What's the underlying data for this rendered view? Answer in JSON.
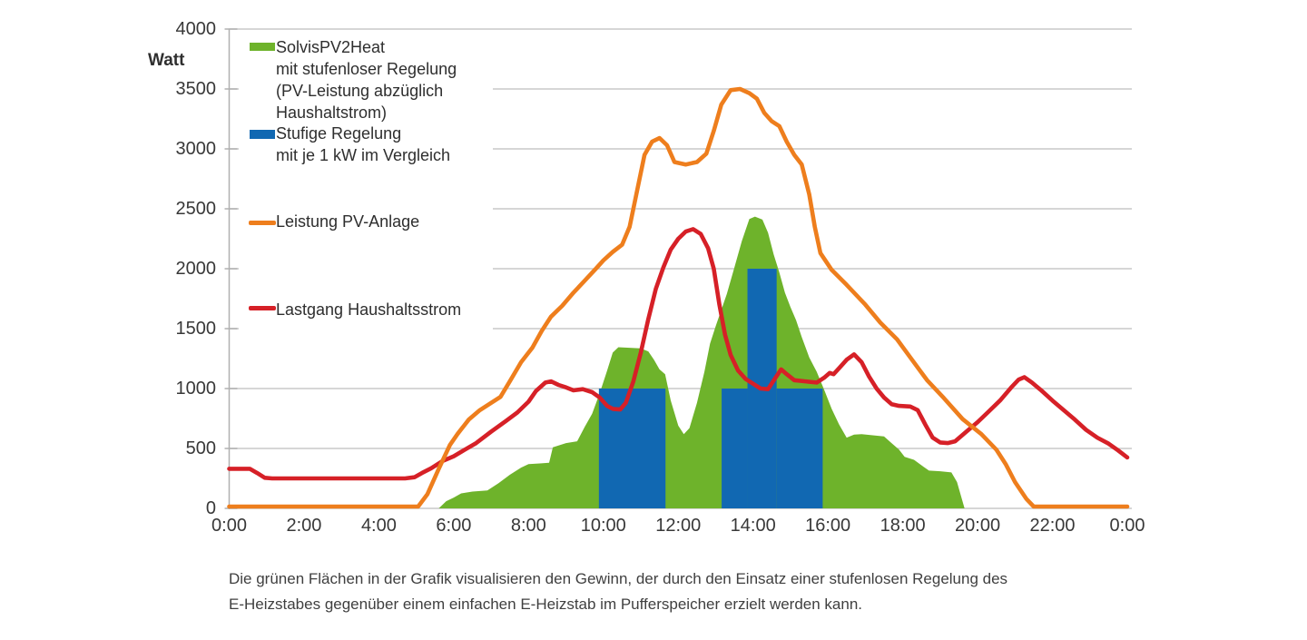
{
  "page": {
    "background": "#ffffff"
  },
  "caption": {
    "lines": [
      "Die grünen Flächen in der Grafik visualisieren den Gewinn, der durch den Einsatz einer stufenlosen Regelung des",
      "E-Heizstabes gegenüber einem einfachen E-Heizstab im Pufferspeicher erzielt werden kann."
    ]
  },
  "legend": {
    "entries": [
      {
        "swatch": "area_green",
        "label_lines": [
          "SolvisPV2Heat",
          "mit stufenloser Regelung",
          "(PV-Leistung abzüglich",
          "Haushaltstrom)"
        ]
      },
      {
        "swatch": "bar_blue",
        "label_lines": [
          "Stufige Regelung",
          "mit  je 1 kW im Vergleich"
        ]
      },
      {
        "swatch": "line_orange",
        "label_lines": [
          "Leistung PV-Anlage"
        ]
      },
      {
        "swatch": "line_red",
        "label_lines": [
          "Lastgang Haushaltsstrom"
        ]
      }
    ]
  },
  "chart_data": {
    "type": "combo (area + step-bars + lines)",
    "unit_label": "Watt",
    "xlim_hours": [
      0,
      24
    ],
    "ylim": [
      0,
      4000
    ],
    "grid": true,
    "colors": {
      "area_green": "#6eb32b",
      "bar_blue": "#1168b2",
      "line_orange": "#ee7e1d",
      "line_red": "#d62027",
      "grid": "#c9c9c9",
      "axis": "#b0b0b0",
      "text": "#383838"
    },
    "yticks": [
      {
        "value": 4000,
        "label": "4000"
      },
      {
        "value": 3500,
        "label": "3500"
      },
      {
        "value": 3000,
        "label": "3000"
      },
      {
        "value": 2500,
        "label": "2500"
      },
      {
        "value": 2000,
        "label": "2000"
      },
      {
        "value": 1500,
        "label": "1500"
      },
      {
        "value": 1000,
        "label": "1000"
      },
      {
        "value": 500,
        "label": "500"
      },
      {
        "value": 0,
        "label": "0"
      }
    ],
    "xticks": [
      {
        "hour": 0,
        "label": "0:00"
      },
      {
        "hour": 2,
        "label": "2:00"
      },
      {
        "hour": 4,
        "label": "4:00"
      },
      {
        "hour": 6,
        "label": "6:00"
      },
      {
        "hour": 8,
        "label": "8:00"
      },
      {
        "hour": 10,
        "label": "10:00"
      },
      {
        "hour": 12,
        "label": "12:00"
      },
      {
        "hour": 14,
        "label": "14:00"
      },
      {
        "hour": 16,
        "label": "16:00"
      },
      {
        "hour": 18,
        "label": "18:00"
      },
      {
        "hour": 20,
        "label": "20:00"
      },
      {
        "hour": 22,
        "label": "22:00"
      },
      {
        "hour": 24,
        "label": "0:00"
      }
    ],
    "series": [
      {
        "id": "solvis_area",
        "name": "SolvisPV2Heat mit stufenloser Regelung (PV-Leistung abzüglich Haushaltstrom)",
        "type": "area",
        "color_key": "area_green",
        "points": [
          [
            5.6,
            0
          ],
          [
            5.8,
            60
          ],
          [
            6.0,
            90
          ],
          [
            6.2,
            125
          ],
          [
            6.5,
            140
          ],
          [
            6.9,
            150
          ],
          [
            7.2,
            210
          ],
          [
            7.5,
            280
          ],
          [
            7.8,
            340
          ],
          [
            8.0,
            370
          ],
          [
            8.3,
            375
          ],
          [
            8.55,
            380
          ],
          [
            8.65,
            510
          ],
          [
            9.0,
            545
          ],
          [
            9.3,
            560
          ],
          [
            9.5,
            680
          ],
          [
            9.7,
            790
          ],
          [
            9.9,
            960
          ],
          [
            10.1,
            1150
          ],
          [
            10.25,
            1300
          ],
          [
            10.4,
            1345
          ],
          [
            10.7,
            1340
          ],
          [
            11.0,
            1335
          ],
          [
            11.2,
            1310
          ],
          [
            11.35,
            1240
          ],
          [
            11.5,
            1160
          ],
          [
            11.65,
            1120
          ],
          [
            11.8,
            900
          ],
          [
            12.0,
            690
          ],
          [
            12.15,
            620
          ],
          [
            12.3,
            670
          ],
          [
            12.5,
            880
          ],
          [
            12.7,
            1140
          ],
          [
            12.85,
            1375
          ],
          [
            13.0,
            1520
          ],
          [
            13.3,
            1790
          ],
          [
            13.5,
            2010
          ],
          [
            13.7,
            2230
          ],
          [
            13.9,
            2415
          ],
          [
            14.05,
            2435
          ],
          [
            14.25,
            2410
          ],
          [
            14.4,
            2300
          ],
          [
            14.55,
            2120
          ],
          [
            14.7,
            1970
          ],
          [
            14.85,
            1800
          ],
          [
            15.0,
            1680
          ],
          [
            15.15,
            1570
          ],
          [
            15.3,
            1430
          ],
          [
            15.5,
            1260
          ],
          [
            15.7,
            1140
          ],
          [
            15.9,
            990
          ],
          [
            16.1,
            830
          ],
          [
            16.3,
            700
          ],
          [
            16.5,
            590
          ],
          [
            16.7,
            615
          ],
          [
            16.9,
            620
          ],
          [
            17.2,
            610
          ],
          [
            17.5,
            600
          ],
          [
            17.7,
            545
          ],
          [
            17.9,
            490
          ],
          [
            18.05,
            430
          ],
          [
            18.3,
            405
          ],
          [
            18.5,
            360
          ],
          [
            18.7,
            315
          ],
          [
            19.0,
            310
          ],
          [
            19.3,
            300
          ],
          [
            19.45,
            220
          ],
          [
            19.65,
            0
          ]
        ]
      },
      {
        "id": "stufige_bars",
        "name": "Stufige Regelung mit je 1 kW im Vergleich",
        "type": "bar",
        "color_key": "bar_blue",
        "bars": [
          {
            "from_hour": 9.88,
            "to_hour": 11.66,
            "watts": 1000
          },
          {
            "from_hour": 13.16,
            "to_hour": 13.85,
            "watts": 1000
          },
          {
            "from_hour": 13.85,
            "to_hour": 14.63,
            "watts": 2000
          },
          {
            "from_hour": 14.63,
            "to_hour": 15.86,
            "watts": 1000
          }
        ]
      },
      {
        "id": "pv_line",
        "name": "Leistung PV-Anlage",
        "type": "line",
        "color_key": "line_orange",
        "points": [
          [
            0,
            15
          ],
          [
            5.05,
            15
          ],
          [
            5.3,
            120
          ],
          [
            5.6,
            330
          ],
          [
            5.9,
            530
          ],
          [
            6.1,
            620
          ],
          [
            6.4,
            740
          ],
          [
            6.7,
            820
          ],
          [
            7.0,
            880
          ],
          [
            7.25,
            930
          ],
          [
            7.5,
            1060
          ],
          [
            7.8,
            1220
          ],
          [
            8.1,
            1340
          ],
          [
            8.35,
            1480
          ],
          [
            8.6,
            1600
          ],
          [
            8.9,
            1690
          ],
          [
            9.2,
            1800
          ],
          [
            9.5,
            1900
          ],
          [
            9.8,
            2000
          ],
          [
            10.0,
            2070
          ],
          [
            10.25,
            2140
          ],
          [
            10.5,
            2200
          ],
          [
            10.7,
            2350
          ],
          [
            10.9,
            2650
          ],
          [
            11.1,
            2950
          ],
          [
            11.3,
            3060
          ],
          [
            11.5,
            3090
          ],
          [
            11.7,
            3030
          ],
          [
            11.9,
            2890
          ],
          [
            12.2,
            2870
          ],
          [
            12.5,
            2890
          ],
          [
            12.75,
            2960
          ],
          [
            12.95,
            3150
          ],
          [
            13.15,
            3370
          ],
          [
            13.4,
            3490
          ],
          [
            13.65,
            3500
          ],
          [
            13.9,
            3465
          ],
          [
            14.1,
            3420
          ],
          [
            14.3,
            3300
          ],
          [
            14.5,
            3230
          ],
          [
            14.7,
            3190
          ],
          [
            14.9,
            3060
          ],
          [
            15.1,
            2950
          ],
          [
            15.3,
            2870
          ],
          [
            15.5,
            2620
          ],
          [
            15.65,
            2350
          ],
          [
            15.8,
            2130
          ],
          [
            16.1,
            1990
          ],
          [
            16.5,
            1865
          ],
          [
            17.0,
            1700
          ],
          [
            17.4,
            1550
          ],
          [
            17.85,
            1410
          ],
          [
            18.2,
            1260
          ],
          [
            18.65,
            1070
          ],
          [
            19.1,
            920
          ],
          [
            19.6,
            745
          ],
          [
            20.1,
            620
          ],
          [
            20.5,
            490
          ],
          [
            20.75,
            370
          ],
          [
            21.0,
            220
          ],
          [
            21.3,
            80
          ],
          [
            21.5,
            15
          ],
          [
            24,
            15
          ]
        ]
      },
      {
        "id": "last_line",
        "name": "Lastgang Haushaltsstrom",
        "type": "line",
        "color_key": "line_red",
        "points": [
          [
            0,
            330
          ],
          [
            0.55,
            330
          ],
          [
            0.75,
            295
          ],
          [
            0.95,
            255
          ],
          [
            1.15,
            250
          ],
          [
            4.7,
            250
          ],
          [
            4.95,
            260
          ],
          [
            5.15,
            295
          ],
          [
            5.4,
            335
          ],
          [
            5.7,
            395
          ],
          [
            6.0,
            435
          ],
          [
            6.3,
            490
          ],
          [
            6.6,
            545
          ],
          [
            7.0,
            640
          ],
          [
            7.4,
            730
          ],
          [
            7.7,
            800
          ],
          [
            8.0,
            890
          ],
          [
            8.2,
            980
          ],
          [
            8.45,
            1050
          ],
          [
            8.6,
            1060
          ],
          [
            8.8,
            1030
          ],
          [
            9.0,
            1010
          ],
          [
            9.2,
            985
          ],
          [
            9.45,
            995
          ],
          [
            9.7,
            970
          ],
          [
            9.9,
            925
          ],
          [
            10.1,
            855
          ],
          [
            10.25,
            830
          ],
          [
            10.45,
            825
          ],
          [
            10.6,
            880
          ],
          [
            10.8,
            1060
          ],
          [
            11.0,
            1300
          ],
          [
            11.2,
            1580
          ],
          [
            11.4,
            1830
          ],
          [
            11.6,
            2010
          ],
          [
            11.8,
            2160
          ],
          [
            12.0,
            2250
          ],
          [
            12.2,
            2310
          ],
          [
            12.4,
            2330
          ],
          [
            12.6,
            2290
          ],
          [
            12.8,
            2170
          ],
          [
            12.95,
            2000
          ],
          [
            13.1,
            1700
          ],
          [
            13.25,
            1450
          ],
          [
            13.4,
            1280
          ],
          [
            13.6,
            1150
          ],
          [
            13.8,
            1080
          ],
          [
            14.0,
            1040
          ],
          [
            14.2,
            1000
          ],
          [
            14.4,
            995
          ],
          [
            14.6,
            1090
          ],
          [
            14.75,
            1160
          ],
          [
            14.9,
            1120
          ],
          [
            15.1,
            1070
          ],
          [
            15.4,
            1060
          ],
          [
            15.7,
            1050
          ],
          [
            15.9,
            1090
          ],
          [
            16.05,
            1130
          ],
          [
            16.15,
            1120
          ],
          [
            16.3,
            1170
          ],
          [
            16.5,
            1240
          ],
          [
            16.7,
            1285
          ],
          [
            16.9,
            1220
          ],
          [
            17.1,
            1100
          ],
          [
            17.3,
            1000
          ],
          [
            17.5,
            925
          ],
          [
            17.7,
            870
          ],
          [
            17.9,
            855
          ],
          [
            18.2,
            850
          ],
          [
            18.4,
            820
          ],
          [
            18.6,
            700
          ],
          [
            18.8,
            590
          ],
          [
            19.0,
            550
          ],
          [
            19.2,
            545
          ],
          [
            19.4,
            560
          ],
          [
            19.7,
            640
          ],
          [
            20.0,
            720
          ],
          [
            20.3,
            810
          ],
          [
            20.6,
            900
          ],
          [
            20.9,
            1010
          ],
          [
            21.1,
            1075
          ],
          [
            21.25,
            1095
          ],
          [
            21.45,
            1050
          ],
          [
            21.7,
            985
          ],
          [
            22.0,
            900
          ],
          [
            22.3,
            820
          ],
          [
            22.6,
            740
          ],
          [
            22.9,
            655
          ],
          [
            23.2,
            590
          ],
          [
            23.5,
            540
          ],
          [
            23.75,
            485
          ],
          [
            24.0,
            425
          ]
        ]
      }
    ]
  }
}
